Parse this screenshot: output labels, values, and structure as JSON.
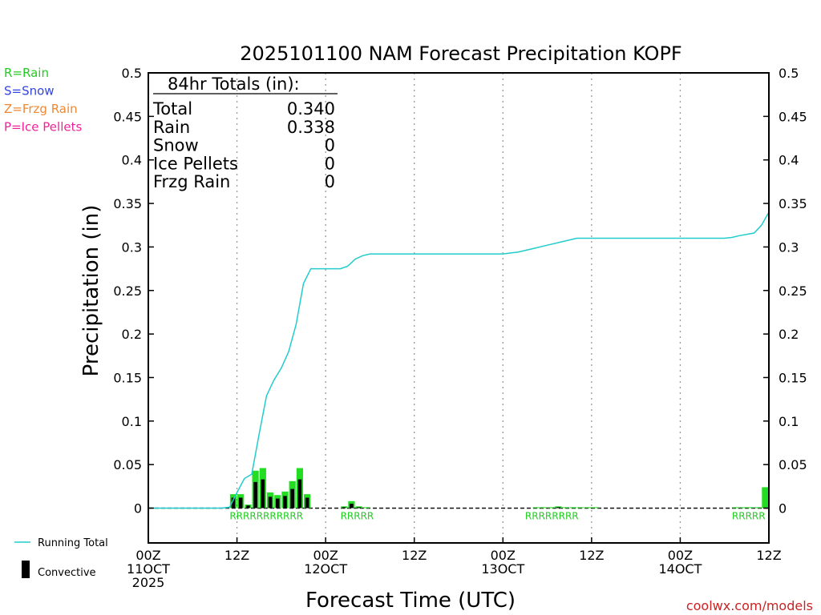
{
  "chart_data": {
    "type": "bar",
    "title": "2025101100 NAM Forecast Precipitation KOPF",
    "ylabel": "Precipitation  (in)",
    "xlabel": "Forecast Time (UTC)",
    "ylim": [
      -0.04,
      0.5
    ],
    "xlim": [
      0,
      84
    ],
    "yticks": [
      0,
      0.05,
      0.1,
      0.15,
      0.2,
      0.25,
      0.3,
      0.35,
      0.4,
      0.45,
      0.5
    ],
    "ytick_labels": [
      "0",
      "0.05",
      "0.1",
      "0.15",
      "0.2",
      "0.25",
      "0.3",
      "0.35",
      "0.4",
      "0.45",
      "0.5"
    ],
    "xticks": [
      {
        "hour": 0,
        "line1": "00Z",
        "line2": "11OCT",
        "line3": "2025"
      },
      {
        "hour": 12,
        "line1": "12Z",
        "line2": "",
        "line3": ""
      },
      {
        "hour": 24,
        "line1": "00Z",
        "line2": "12OCT",
        "line3": ""
      },
      {
        "hour": 36,
        "line1": "12Z",
        "line2": "",
        "line3": ""
      },
      {
        "hour": 48,
        "line1": "00Z",
        "line2": "13OCT",
        "line3": ""
      },
      {
        "hour": 60,
        "line1": "12Z",
        "line2": "",
        "line3": ""
      },
      {
        "hour": 72,
        "line1": "00Z",
        "line2": "14OCT",
        "line3": ""
      },
      {
        "hour": 84,
        "line1": "12Z",
        "line2": "",
        "line3": ""
      }
    ],
    "hourly_precip": {
      "hours": [
        12,
        13,
        14,
        15,
        16,
        17,
        18,
        19,
        20,
        21,
        22,
        23,
        27,
        28,
        29,
        30,
        31,
        53,
        54,
        55,
        56,
        57,
        58,
        59,
        60,
        61,
        80,
        81,
        82,
        83,
        84
      ],
      "values": [
        0.016,
        0.016,
        0.004,
        0.043,
        0.046,
        0.018,
        0.015,
        0.019,
        0.031,
        0.046,
        0.016,
        0.0,
        0.002,
        0.008,
        0.002,
        0.001,
        0.0,
        0.001,
        0.001,
        0.001,
        0.002,
        0.001,
        0.001,
        0.001,
        0.001,
        0.001,
        0.001,
        0.001,
        0.001,
        0.001,
        0.024
      ],
      "convective": [
        0.012,
        0.012,
        0.003,
        0.03,
        0.033,
        0.013,
        0.011,
        0.014,
        0.022,
        0.033,
        0.012,
        0.0,
        0.001,
        0.005,
        0.001,
        0.0,
        0.0,
        0.0,
        0.0,
        0.0,
        0.001,
        0.0,
        0.0,
        0.0,
        0.0,
        0.0,
        0.0,
        0.0,
        0.0,
        0.0,
        0.0
      ]
    },
    "running_total": {
      "hours": [
        0,
        10,
        11,
        12,
        13,
        14,
        15,
        16,
        17,
        18,
        19,
        20,
        21,
        22,
        23,
        24,
        26,
        27,
        28,
        29,
        30,
        31,
        32,
        36,
        48,
        50,
        52,
        54,
        56,
        58,
        60,
        62,
        70,
        78,
        79,
        80,
        82,
        83,
        84
      ],
      "values": [
        0,
        0,
        0.001,
        0.018,
        0.034,
        0.039,
        0.085,
        0.129,
        0.147,
        0.161,
        0.18,
        0.211,
        0.258,
        0.275,
        0.275,
        0.275,
        0.275,
        0.278,
        0.286,
        0.29,
        0.292,
        0.292,
        0.292,
        0.292,
        0.292,
        0.294,
        0.298,
        0.302,
        0.306,
        0.31,
        0.31,
        0.31,
        0.31,
        0.31,
        0.311,
        0.313,
        0.316,
        0.325,
        0.34
      ]
    },
    "precip_type_labels": [
      {
        "text": "RRRRRRRRRRR",
        "start_hour": 12
      },
      {
        "text": "RRRRR",
        "start_hour": 27
      },
      {
        "text": "RRRRRRRR",
        "start_hour": 52
      },
      {
        "text": "RRRRR",
        "start_hour": 80
      }
    ],
    "totals_box": {
      "heading": "84hr Totals (in):",
      "rows": [
        {
          "label": "Total",
          "value": "0.340"
        },
        {
          "label": "Rain",
          "value": "0.338"
        },
        {
          "label": "Snow",
          "value": "0"
        },
        {
          "label": "Ice Pellets",
          "value": "0"
        },
        {
          "label": "Frzg Rain",
          "value": "0"
        }
      ]
    },
    "type_legend": [
      {
        "text": "R=Rain",
        "color": "#22cc22"
      },
      {
        "text": "S=Snow",
        "color": "#3344dd"
      },
      {
        "text": "Z=Frzg Rain",
        "color": "#ee8833"
      },
      {
        "text": "P=Ice Pellets",
        "color": "#ee2299"
      }
    ],
    "series_legend": [
      {
        "name": "Running Total",
        "color": "#22cccc"
      },
      {
        "name": "Convective",
        "color": "#000000"
      }
    ]
  },
  "colors": {
    "rain_bar": "#22dd22",
    "convective_bar": "#000000",
    "running_total": "#22cccc",
    "grid": "#999999",
    "credit": "#cc2222"
  },
  "credit": "coolwx.com/models"
}
